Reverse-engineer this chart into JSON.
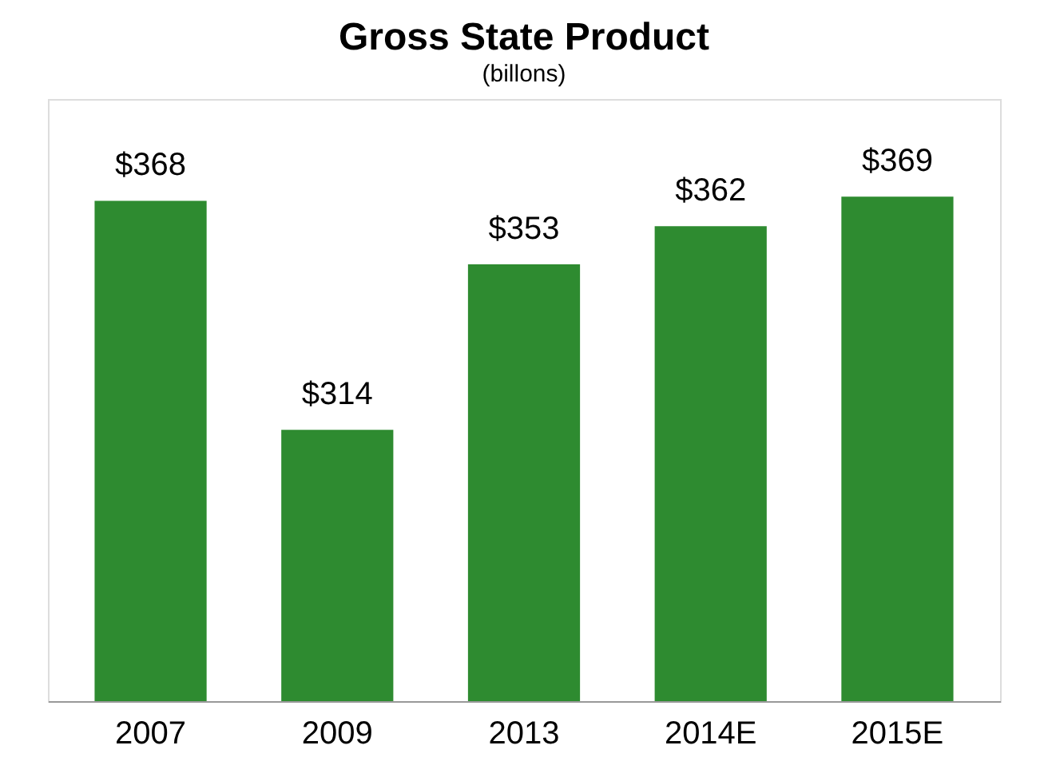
{
  "chart_data": {
    "type": "bar",
    "title": "Gross State Product",
    "subtitle": "(billons)",
    "categories": [
      "2007",
      "2009",
      "2013",
      "2014E",
      "2015E"
    ],
    "values": [
      368,
      314,
      353,
      362,
      369
    ],
    "value_labels": [
      "$368",
      "$314",
      "$353",
      "$362",
      "$369"
    ],
    "color": "#2e8b30",
    "ylim": [
      250,
      392
    ],
    "tick_labels": "x",
    "grid": false
  }
}
